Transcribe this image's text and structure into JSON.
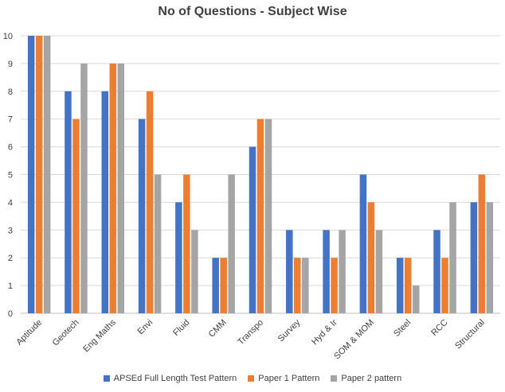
{
  "chart_data": {
    "type": "bar",
    "title": "No of Questions - Subject Wise",
    "categories": [
      "Aptitude",
      "Geotech",
      "Eng Maths",
      "Envi",
      "Fluid",
      "CMM",
      "Transpo",
      "Survey",
      "Hyd & Ir",
      "SOM & MOM",
      "Steel",
      "RCC",
      "Structural"
    ],
    "series": [
      {
        "name": "APSEd Full Length Test Pattern",
        "color": "#4472C4",
        "values": [
          10,
          8,
          8,
          7,
          4,
          2,
          6,
          3,
          3,
          5,
          2,
          3,
          4
        ]
      },
      {
        "name": "Paper 1 Pattern",
        "color": "#ED7D31",
        "values": [
          10,
          7,
          9,
          8,
          5,
          2,
          7,
          2,
          2,
          4,
          2,
          2,
          5
        ]
      },
      {
        "name": "Paper 2 pattern",
        "color": "#A5A5A5",
        "values": [
          10,
          9,
          9,
          5,
          3,
          5,
          7,
          2,
          3,
          3,
          1,
          4,
          4
        ]
      }
    ],
    "ylim": [
      0,
      10
    ],
    "yticks": [
      "0",
      "1",
      "2",
      "3",
      "4",
      "5",
      "6",
      "7",
      "8",
      "9",
      "10"
    ],
    "grid": true,
    "legend_position": "bottom"
  }
}
